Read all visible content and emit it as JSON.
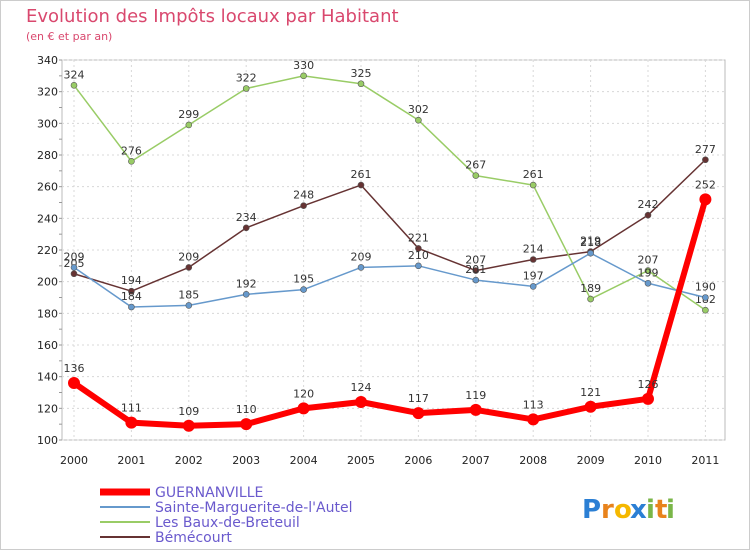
{
  "chart_data": {
    "type": "line",
    "title": "Evolution des Impôts locaux par Habitant",
    "subtitle": "(en € et par an)",
    "x": [
      "2000",
      "2001",
      "2002",
      "2003",
      "2004",
      "2005",
      "2006",
      "2007",
      "2008",
      "2009",
      "2010",
      "2011"
    ],
    "ylim": [
      100,
      340
    ],
    "yticks": [
      100,
      120,
      140,
      160,
      180,
      200,
      220,
      240,
      260,
      280,
      300,
      320,
      340
    ],
    "grid": true,
    "legend_position": "bottom-left",
    "series": [
      {
        "name": "GUERNANVILLE",
        "color": "#ff0000",
        "values": [
          136,
          111,
          109,
          110,
          120,
          124,
          117,
          119,
          113,
          121,
          126,
          252
        ]
      },
      {
        "name": "Sainte-Marguerite-de-l'Autel",
        "color": "#6699cc",
        "values": [
          209,
          184,
          185,
          192,
          195,
          209,
          210,
          201,
          197,
          218,
          199,
          190
        ]
      },
      {
        "name": "Les Baux-de-Breteuil",
        "color": "#99cc66",
        "values": [
          324,
          276,
          299,
          322,
          330,
          325,
          302,
          267,
          261,
          189,
          207,
          182
        ]
      },
      {
        "name": "Bémécourt",
        "color": "#663333",
        "values": [
          205,
          194,
          209,
          234,
          248,
          261,
          221,
          207,
          214,
          219,
          242,
          277
        ]
      }
    ]
  },
  "logo": {
    "text": "Proxiti",
    "letters": [
      "P",
      "r",
      "o",
      "x",
      "i",
      "t",
      "i"
    ],
    "colors": [
      "#2b7fd4",
      "#e8831c",
      "#f5b800",
      "#2b7fd4",
      "#7ab648",
      "#e8831c",
      "#7ab648"
    ]
  }
}
